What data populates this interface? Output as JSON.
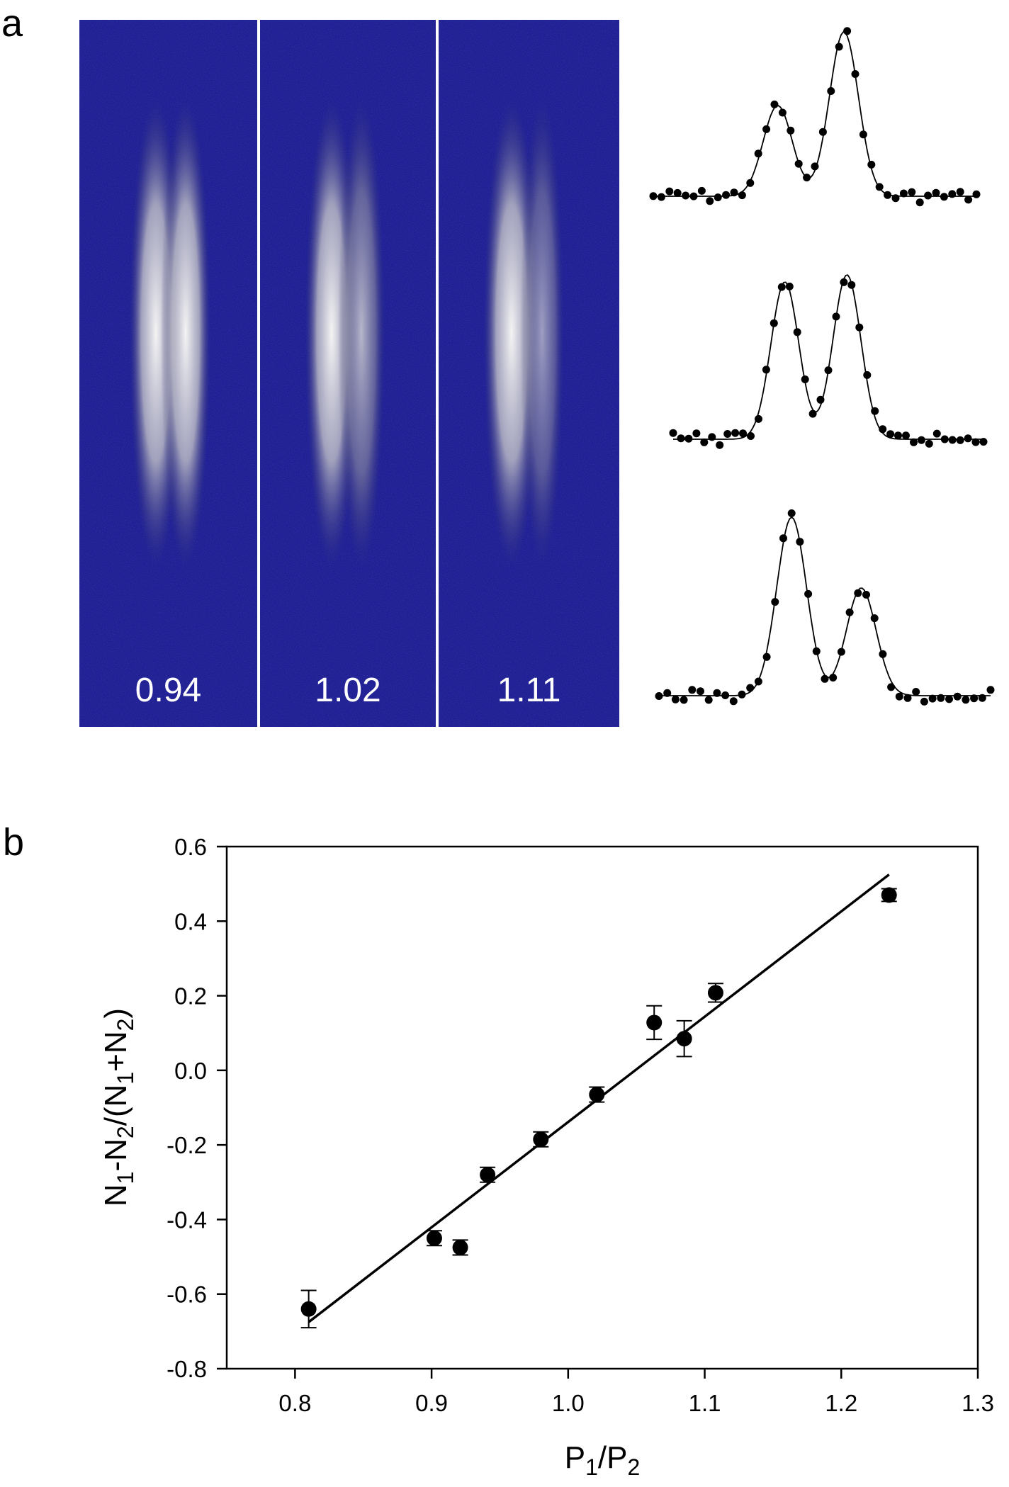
{
  "panels": {
    "a_label": "a",
    "b_label": "b"
  },
  "images": {
    "labels": [
      "0.94",
      "1.02",
      "1.11"
    ],
    "background_color": "#14147a",
    "divider_color": "#ffffff"
  },
  "chart_data": [
    {
      "type": "scatter",
      "title": "",
      "xlabel_main": "P",
      "xlabel_sub1": "1",
      "xlabel_mid": "/P",
      "xlabel_sub2": "2",
      "ylabel_parts": [
        "N",
        "1",
        "-N",
        "2",
        "/(N",
        "1",
        "+N",
        "2",
        ")"
      ],
      "xlim": [
        0.75,
        1.3
      ],
      "ylim": [
        -0.8,
        0.6
      ],
      "xticks": [
        "0.8",
        "0.9",
        "1.0",
        "1.1",
        "1.2",
        "1.3"
      ],
      "yticks": [
        "0.6",
        "0.4",
        "0.2",
        "0.0",
        "-0.2",
        "-0.4",
        "-0.6",
        "-0.8"
      ],
      "points": [
        {
          "x": 0.81,
          "y": -0.64,
          "err": 0.05
        },
        {
          "x": 0.902,
          "y": -0.45,
          "err": 0.02
        },
        {
          "x": 0.921,
          "y": -0.475,
          "err": 0.02
        },
        {
          "x": 0.941,
          "y": -0.28,
          "err": 0.02
        },
        {
          "x": 0.98,
          "y": -0.185,
          "err": 0.02
        },
        {
          "x": 1.021,
          "y": -0.065,
          "err": 0.02
        },
        {
          "x": 1.063,
          "y": 0.128,
          "err": 0.045
        },
        {
          "x": 1.085,
          "y": 0.085,
          "err": 0.048
        },
        {
          "x": 1.108,
          "y": 0.208,
          "err": 0.025
        },
        {
          "x": 1.235,
          "y": 0.47,
          "err": 0.017
        }
      ],
      "fit_line": {
        "x": [
          0.81,
          1.235
        ],
        "y": [
          -0.675,
          0.525
        ]
      },
      "grid": false
    }
  ]
}
